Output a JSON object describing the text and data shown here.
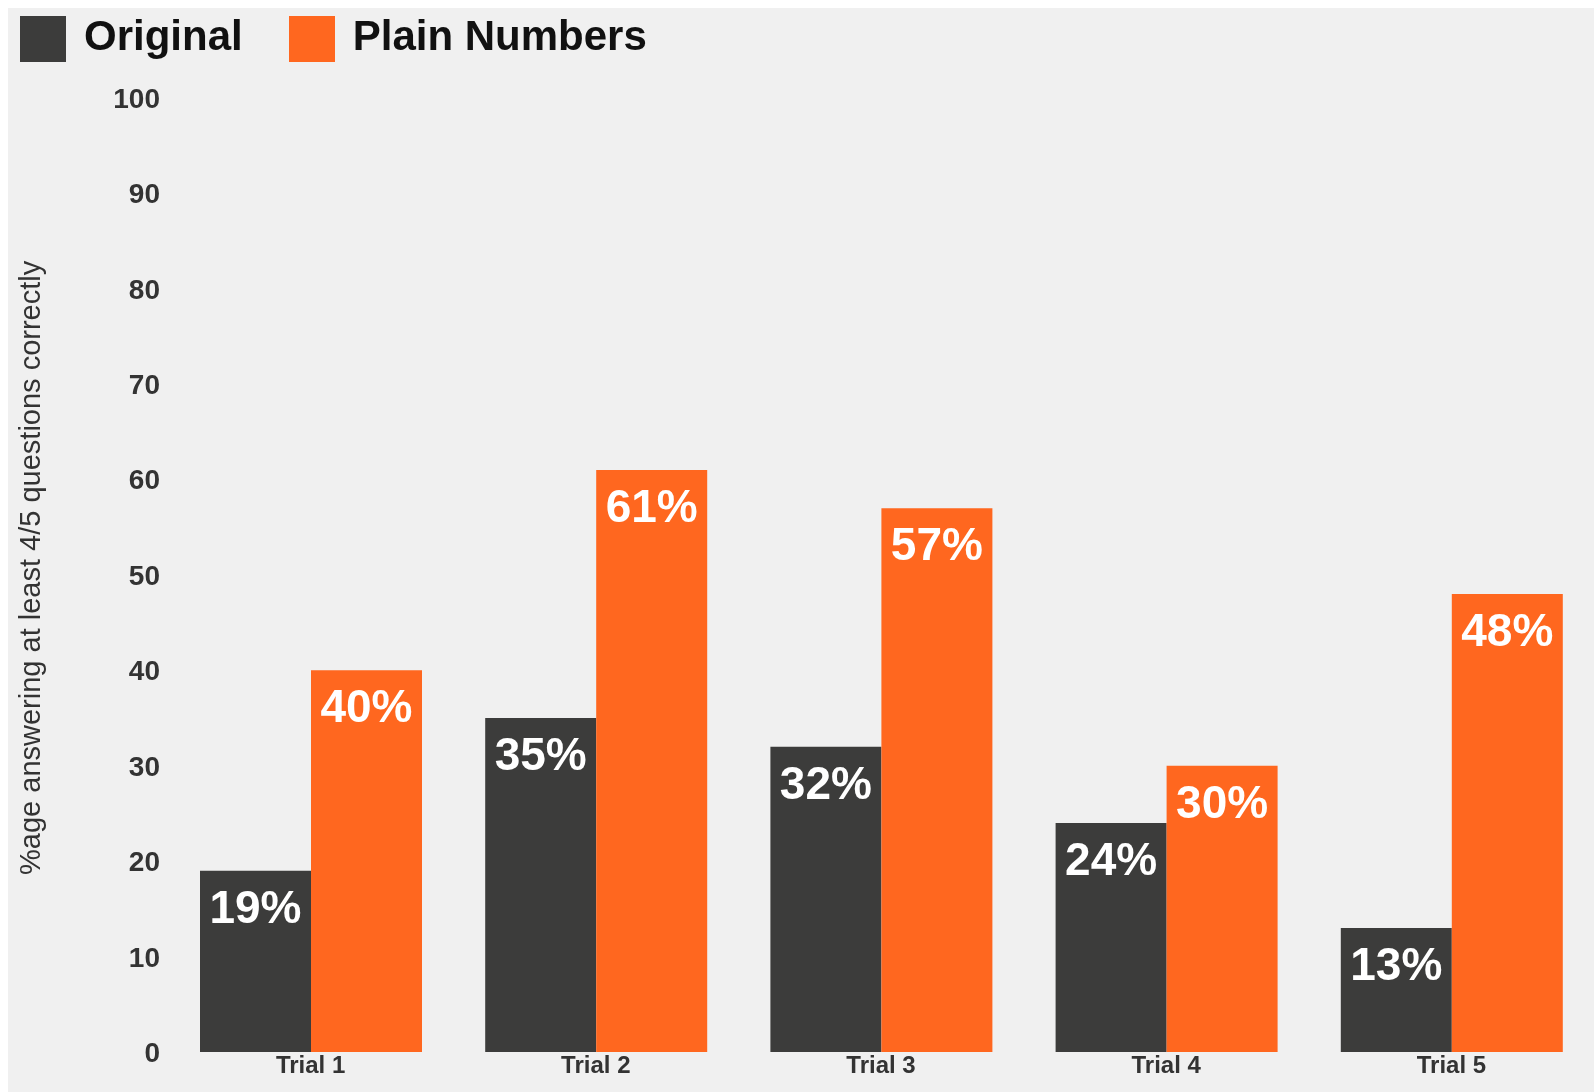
{
  "chart_data": {
    "type": "bar",
    "ylabel": "%age answering at least 4/5 questions correctly",
    "categories": [
      "Trial 1",
      "Trial 2",
      "Trial 3",
      "Trial 4",
      "Trial 5"
    ],
    "series": [
      {
        "name": "Original",
        "color": "#3c3c3b",
        "values": [
          19,
          35,
          32,
          24,
          13
        ],
        "value_labels": [
          "19%",
          "35%",
          "32%",
          "24%",
          "13%"
        ]
      },
      {
        "name": "Plain Numbers",
        "color": "#ff671f",
        "values": [
          40,
          61,
          57,
          30,
          48
        ],
        "value_labels": [
          "40%",
          "61%",
          "57%",
          "30%",
          "48%"
        ]
      }
    ],
    "ylim": [
      0,
      100
    ],
    "yticks": [
      0,
      10,
      20,
      30,
      40,
      50,
      60,
      70,
      80,
      90,
      100
    ],
    "grid": false,
    "legend": "top left"
  }
}
